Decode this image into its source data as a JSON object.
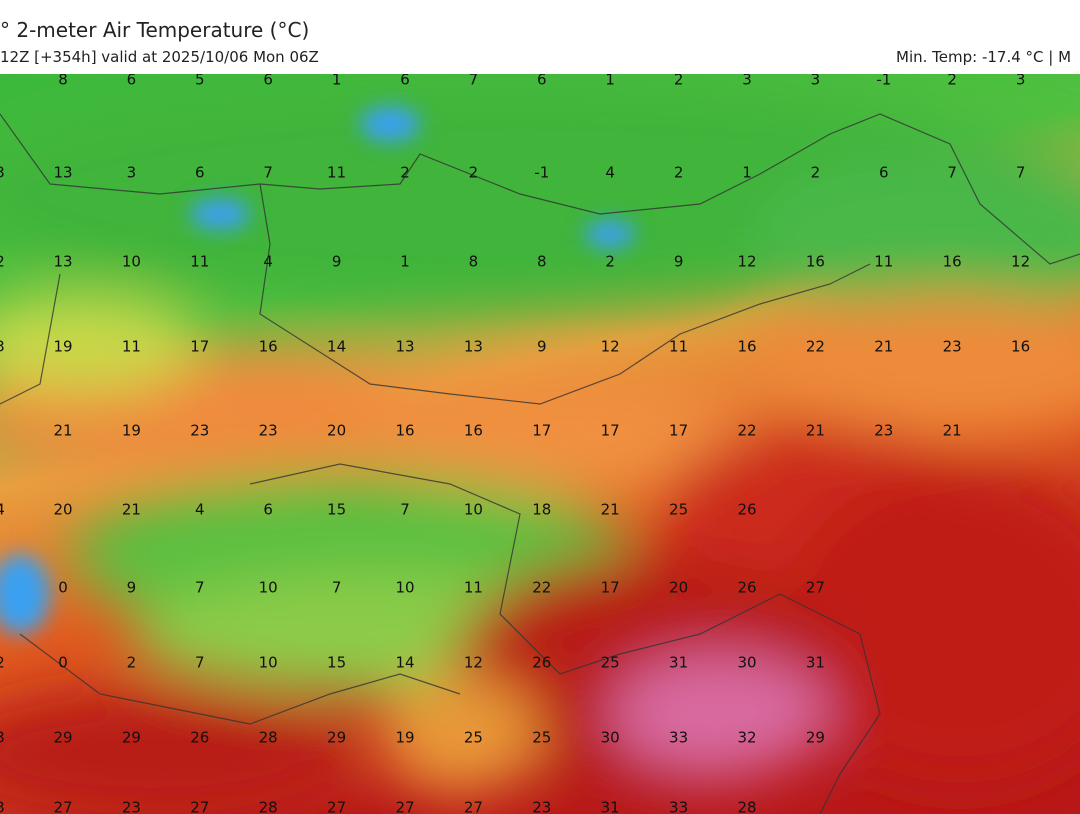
{
  "header": {
    "title": "° 2-meter Air Temperature (°C)",
    "subtitle": "12Z [+354h] valid at 2025/10/06 Mon 06Z",
    "stats": "Min. Temp: -17.4 °C | M"
  },
  "grid": {
    "rows": [
      [
        null,
        8,
        6,
        5,
        6,
        1,
        6,
        7,
        6,
        1,
        2,
        3,
        3,
        -1,
        2,
        3
      ],
      [
        3,
        13,
        3,
        6,
        7,
        11,
        2,
        2,
        -1,
        4,
        2,
        1,
        2,
        6,
        7,
        7
      ],
      [
        2,
        13,
        10,
        11,
        4,
        9,
        1,
        8,
        8,
        2,
        9,
        12,
        16,
        11,
        16,
        12
      ],
      [
        3,
        19,
        11,
        17,
        16,
        14,
        13,
        13,
        9,
        12,
        11,
        16,
        22,
        21,
        23,
        16
      ],
      [
        null,
        21,
        19,
        23,
        23,
        20,
        16,
        16,
        17,
        17,
        17,
        22,
        21,
        23,
        21,
        null
      ],
      [
        4,
        20,
        21,
        4,
        6,
        15,
        7,
        10,
        18,
        21,
        25,
        26,
        null,
        null,
        null,
        null
      ],
      [
        null,
        0,
        9,
        7,
        10,
        7,
        10,
        11,
        22,
        17,
        20,
        26,
        27,
        null,
        null,
        null
      ],
      [
        2,
        0,
        2,
        7,
        10,
        15,
        14,
        12,
        26,
        25,
        31,
        30,
        31,
        null,
        null,
        null
      ],
      [
        3,
        29,
        29,
        26,
        28,
        29,
        19,
        25,
        25,
        30,
        33,
        32,
        29,
        null,
        null,
        null
      ],
      [
        3,
        27,
        23,
        27,
        28,
        27,
        27,
        27,
        23,
        31,
        33,
        28,
        null,
        null,
        null,
        null
      ]
    ]
  }
}
